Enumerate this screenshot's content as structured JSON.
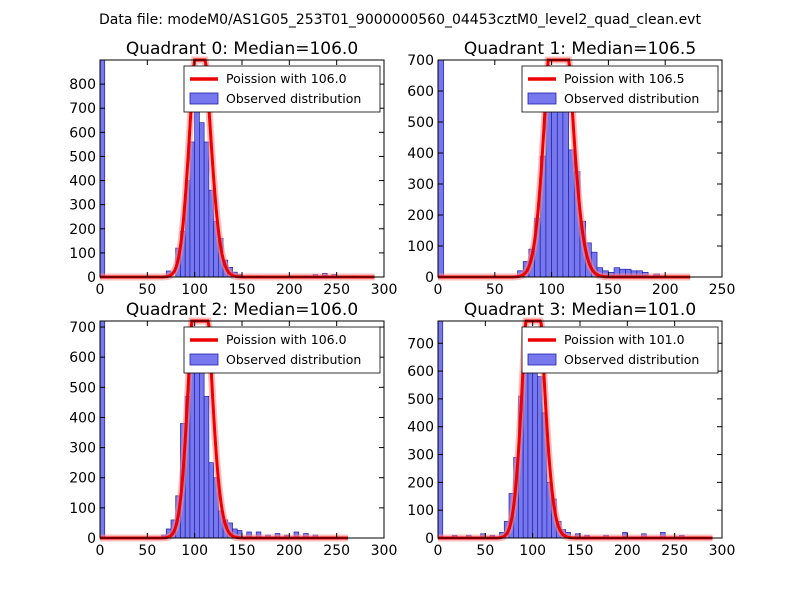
{
  "suptitle": "Data file: modeM0/AS1G05_253T01_9000000560_04453cztM0_level2_quad_clean.evt",
  "colors": {
    "hist_fill": "#7777ee",
    "hist_edge": "#2222aa",
    "curve": "#ee0000",
    "curve_glow": "#ff8888"
  },
  "chart_data": [
    {
      "type": "bar",
      "title": "Quadrant 0: Median=106.0",
      "xlim": [
        0,
        300
      ],
      "ylim": [
        0,
        900
      ],
      "xticks": [
        0,
        50,
        100,
        150,
        200,
        250,
        300
      ],
      "yticks": [
        0,
        100,
        200,
        300,
        400,
        500,
        600,
        700,
        800
      ],
      "legend": {
        "position": "top-right",
        "entries": [
          "Poission with 106.0",
          "Observed distribution"
        ]
      },
      "median": 106.0,
      "curve_end": 290,
      "bins": [
        {
          "x": 0,
          "v": 900
        },
        {
          "x": 70,
          "v": 25
        },
        {
          "x": 80,
          "v": 120
        },
        {
          "x": 85,
          "v": 190
        },
        {
          "x": 90,
          "v": 400
        },
        {
          "x": 95,
          "v": 560
        },
        {
          "x": 100,
          "v": 700
        },
        {
          "x": 105,
          "v": 640
        },
        {
          "x": 110,
          "v": 560
        },
        {
          "x": 115,
          "v": 360
        },
        {
          "x": 120,
          "v": 230
        },
        {
          "x": 125,
          "v": 160
        },
        {
          "x": 130,
          "v": 70
        },
        {
          "x": 135,
          "v": 40
        },
        {
          "x": 140,
          "v": 20
        },
        {
          "x": 145,
          "v": 10
        },
        {
          "x": 155,
          "v": 5
        },
        {
          "x": 165,
          "v": 5
        },
        {
          "x": 215,
          "v": 5
        },
        {
          "x": 225,
          "v": 10
        },
        {
          "x": 235,
          "v": 15
        },
        {
          "x": 245,
          "v": 10
        },
        {
          "x": 265,
          "v": 5
        }
      ]
    },
    {
      "type": "bar",
      "title": "Quadrant 1: Median=106.5",
      "xlim": [
        0,
        250
      ],
      "ylim": [
        0,
        700
      ],
      "xticks": [
        0,
        50,
        100,
        150,
        200,
        250
      ],
      "yticks": [
        0,
        100,
        200,
        300,
        400,
        500,
        600,
        700
      ],
      "legend": {
        "position": "top-right",
        "entries": [
          "Poission with 106.5",
          "Observed distribution"
        ]
      },
      "median": 106.5,
      "curve_end": 222,
      "bins": [
        {
          "x": 0,
          "v": 700
        },
        {
          "x": 70,
          "v": 20
        },
        {
          "x": 75,
          "v": 50
        },
        {
          "x": 80,
          "v": 90
        },
        {
          "x": 85,
          "v": 190
        },
        {
          "x": 90,
          "v": 390
        },
        {
          "x": 95,
          "v": 540
        },
        {
          "x": 100,
          "v": 660
        },
        {
          "x": 105,
          "v": 630
        },
        {
          "x": 110,
          "v": 590
        },
        {
          "x": 115,
          "v": 410
        },
        {
          "x": 120,
          "v": 340
        },
        {
          "x": 125,
          "v": 180
        },
        {
          "x": 130,
          "v": 110
        },
        {
          "x": 135,
          "v": 80
        },
        {
          "x": 140,
          "v": 30
        },
        {
          "x": 145,
          "v": 20
        },
        {
          "x": 150,
          "v": 15
        },
        {
          "x": 155,
          "v": 30
        },
        {
          "x": 160,
          "v": 25
        },
        {
          "x": 165,
          "v": 25
        },
        {
          "x": 170,
          "v": 20
        },
        {
          "x": 175,
          "v": 20
        },
        {
          "x": 180,
          "v": 15
        },
        {
          "x": 190,
          "v": 10
        }
      ]
    },
    {
      "type": "bar",
      "title": "Quadrant 2: Median=106.0",
      "xlim": [
        0,
        300
      ],
      "ylim": [
        0,
        720
      ],
      "xticks": [
        0,
        50,
        100,
        150,
        200,
        250,
        300
      ],
      "yticks": [
        0,
        100,
        200,
        300,
        400,
        500,
        600,
        700
      ],
      "legend": {
        "position": "top-right",
        "entries": [
          "Poission with 106.0",
          "Observed distribution"
        ]
      },
      "median": 106.0,
      "curve_end": 262,
      "bins": [
        {
          "x": 0,
          "v": 720
        },
        {
          "x": 65,
          "v": 10
        },
        {
          "x": 70,
          "v": 30
        },
        {
          "x": 75,
          "v": 60
        },
        {
          "x": 80,
          "v": 140
        },
        {
          "x": 85,
          "v": 380
        },
        {
          "x": 90,
          "v": 470
        },
        {
          "x": 95,
          "v": 570
        },
        {
          "x": 100,
          "v": 670
        },
        {
          "x": 105,
          "v": 590
        },
        {
          "x": 110,
          "v": 470
        },
        {
          "x": 115,
          "v": 250
        },
        {
          "x": 120,
          "v": 200
        },
        {
          "x": 125,
          "v": 90
        },
        {
          "x": 130,
          "v": 60
        },
        {
          "x": 135,
          "v": 50
        },
        {
          "x": 140,
          "v": 30
        },
        {
          "x": 145,
          "v": 25
        },
        {
          "x": 155,
          "v": 20
        },
        {
          "x": 165,
          "v": 20
        },
        {
          "x": 175,
          "v": 10
        },
        {
          "x": 185,
          "v": 15
        },
        {
          "x": 195,
          "v": 10
        },
        {
          "x": 205,
          "v": 20
        },
        {
          "x": 215,
          "v": 15
        },
        {
          "x": 225,
          "v": 10
        }
      ]
    },
    {
      "type": "bar",
      "title": "Quadrant 3: Median=101.0",
      "xlim": [
        0,
        300
      ],
      "ylim": [
        0,
        780
      ],
      "xticks": [
        0,
        50,
        100,
        150,
        200,
        250,
        300
      ],
      "yticks": [
        0,
        100,
        200,
        300,
        400,
        500,
        600,
        700
      ],
      "legend": {
        "position": "top-right",
        "entries": [
          "Poission with 101.0",
          "Observed distribution"
        ]
      },
      "median": 101.0,
      "curve_end": 290,
      "bins": [
        {
          "x": 0,
          "v": 780
        },
        {
          "x": 15,
          "v": 10
        },
        {
          "x": 30,
          "v": 10
        },
        {
          "x": 45,
          "v": 15
        },
        {
          "x": 55,
          "v": 10
        },
        {
          "x": 65,
          "v": 20
        },
        {
          "x": 70,
          "v": 60
        },
        {
          "x": 75,
          "v": 160
        },
        {
          "x": 80,
          "v": 290
        },
        {
          "x": 85,
          "v": 510
        },
        {
          "x": 90,
          "v": 640
        },
        {
          "x": 95,
          "v": 720
        },
        {
          "x": 100,
          "v": 660
        },
        {
          "x": 105,
          "v": 580
        },
        {
          "x": 110,
          "v": 450
        },
        {
          "x": 115,
          "v": 200
        },
        {
          "x": 120,
          "v": 140
        },
        {
          "x": 125,
          "v": 60
        },
        {
          "x": 130,
          "v": 30
        },
        {
          "x": 135,
          "v": 20
        },
        {
          "x": 145,
          "v": 15
        },
        {
          "x": 155,
          "v": 10
        },
        {
          "x": 175,
          "v": 10
        },
        {
          "x": 195,
          "v": 20
        },
        {
          "x": 215,
          "v": 15
        },
        {
          "x": 235,
          "v": 20
        },
        {
          "x": 255,
          "v": 10
        }
      ]
    }
  ]
}
